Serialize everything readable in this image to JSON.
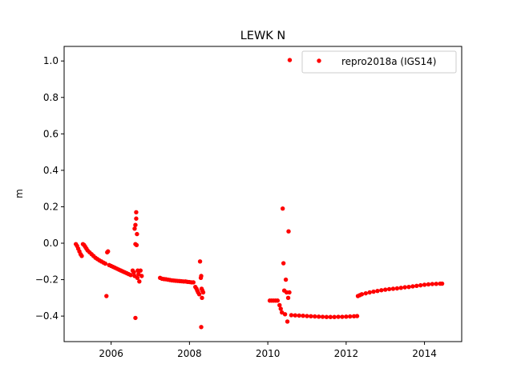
{
  "chart_data": {
    "type": "scatter",
    "title": "LEWK N",
    "xlabel": "",
    "ylabel": "m",
    "xlim": [
      2004.8,
      2014.95
    ],
    "ylim": [
      -0.54,
      1.08
    ],
    "xticks": [
      2006,
      2008,
      2010,
      2012,
      2014
    ],
    "yticks": [
      -0.4,
      -0.2,
      0.0,
      0.2,
      0.4,
      0.6,
      0.8,
      1.0
    ],
    "xtick_labels": [
      "2006",
      "2008",
      "2010",
      "2012",
      "2014"
    ],
    "ytick_labels": [
      "−0.4",
      "−0.2",
      "0.0",
      "0.2",
      "0.4",
      "0.6",
      "0.8",
      "1.0"
    ],
    "grid": false,
    "legend_position": "top-right",
    "series": [
      {
        "name": "repro2018a (IGS14)",
        "color": "#ff0000",
        "marker": "circle",
        "points": [
          [
            2005.1,
            -0.005
          ],
          [
            2005.13,
            -0.015
          ],
          [
            2005.16,
            -0.03
          ],
          [
            2005.19,
            -0.045
          ],
          [
            2005.22,
            -0.06
          ],
          [
            2005.25,
            -0.07
          ],
          [
            2005.28,
            -0.005
          ],
          [
            2005.31,
            -0.01
          ],
          [
            2005.34,
            -0.02
          ],
          [
            2005.37,
            -0.03
          ],
          [
            2005.4,
            -0.04
          ],
          [
            2005.45,
            -0.05
          ],
          [
            2005.5,
            -0.06
          ],
          [
            2005.55,
            -0.07
          ],
          [
            2005.6,
            -0.08
          ],
          [
            2005.65,
            -0.087
          ],
          [
            2005.7,
            -0.094
          ],
          [
            2005.75,
            -0.1
          ],
          [
            2005.8,
            -0.106
          ],
          [
            2005.85,
            -0.112
          ],
          [
            2005.9,
            -0.05
          ],
          [
            2005.92,
            -0.045
          ],
          [
            2005.88,
            -0.29
          ],
          [
            2005.95,
            -0.12
          ],
          [
            2006.0,
            -0.125
          ],
          [
            2006.05,
            -0.13
          ],
          [
            2006.1,
            -0.135
          ],
          [
            2006.15,
            -0.14
          ],
          [
            2006.2,
            -0.145
          ],
          [
            2006.25,
            -0.15
          ],
          [
            2006.3,
            -0.155
          ],
          [
            2006.35,
            -0.16
          ],
          [
            2006.4,
            -0.165
          ],
          [
            2006.45,
            -0.17
          ],
          [
            2006.5,
            -0.175
          ],
          [
            2006.55,
            -0.15
          ],
          [
            2006.58,
            -0.16
          ],
          [
            2006.6,
            -0.18
          ],
          [
            2006.6,
            0.08
          ],
          [
            2006.62,
            -0.005
          ],
          [
            2006.62,
            0.1
          ],
          [
            2006.64,
            0.135
          ],
          [
            2006.64,
            0.17
          ],
          [
            2006.65,
            -0.01
          ],
          [
            2006.66,
            0.05
          ],
          [
            2006.67,
            -0.19
          ],
          [
            2006.68,
            -0.15
          ],
          [
            2006.7,
            -0.17
          ],
          [
            2006.72,
            -0.21
          ],
          [
            2006.75,
            -0.15
          ],
          [
            2006.78,
            -0.18
          ],
          [
            2006.62,
            -0.41
          ],
          [
            2007.25,
            -0.19
          ],
          [
            2007.3,
            -0.195
          ],
          [
            2007.35,
            -0.197
          ],
          [
            2007.4,
            -0.198
          ],
          [
            2007.45,
            -0.2
          ],
          [
            2007.5,
            -0.202
          ],
          [
            2007.55,
            -0.204
          ],
          [
            2007.6,
            -0.205
          ],
          [
            2007.65,
            -0.206
          ],
          [
            2007.7,
            -0.207
          ],
          [
            2007.75,
            -0.208
          ],
          [
            2007.8,
            -0.209
          ],
          [
            2007.85,
            -0.21
          ],
          [
            2007.9,
            -0.21
          ],
          [
            2007.95,
            -0.212
          ],
          [
            2008.0,
            -0.213
          ],
          [
            2008.05,
            -0.215
          ],
          [
            2008.1,
            -0.215
          ],
          [
            2008.15,
            -0.24
          ],
          [
            2008.18,
            -0.25
          ],
          [
            2008.2,
            -0.26
          ],
          [
            2008.22,
            -0.27
          ],
          [
            2008.25,
            -0.28
          ],
          [
            2008.27,
            -0.1
          ],
          [
            2008.29,
            -0.19
          ],
          [
            2008.3,
            -0.18
          ],
          [
            2008.31,
            -0.25
          ],
          [
            2008.32,
            -0.3
          ],
          [
            2008.33,
            -0.26
          ],
          [
            2008.35,
            -0.27
          ],
          [
            2008.3,
            -0.46
          ],
          [
            2010.05,
            -0.315
          ],
          [
            2010.1,
            -0.315
          ],
          [
            2010.15,
            -0.315
          ],
          [
            2010.2,
            -0.315
          ],
          [
            2010.25,
            -0.315
          ],
          [
            2010.3,
            -0.34
          ],
          [
            2010.33,
            -0.36
          ],
          [
            2010.36,
            -0.38
          ],
          [
            2010.38,
            0.19
          ],
          [
            2010.4,
            -0.11
          ],
          [
            2010.42,
            -0.26
          ],
          [
            2010.44,
            -0.39
          ],
          [
            2010.46,
            -0.2
          ],
          [
            2010.48,
            -0.27
          ],
          [
            2010.5,
            -0.43
          ],
          [
            2010.52,
            -0.3
          ],
          [
            2010.53,
            0.065
          ],
          [
            2010.55,
            -0.27
          ],
          [
            2010.56,
            1.005
          ],
          [
            2010.6,
            -0.395
          ],
          [
            2010.7,
            -0.396
          ],
          [
            2010.8,
            -0.397
          ],
          [
            2010.9,
            -0.398
          ],
          [
            2011.0,
            -0.4
          ],
          [
            2011.1,
            -0.401
          ],
          [
            2011.2,
            -0.402
          ],
          [
            2011.3,
            -0.403
          ],
          [
            2011.4,
            -0.404
          ],
          [
            2011.5,
            -0.405
          ],
          [
            2011.6,
            -0.405
          ],
          [
            2011.7,
            -0.405
          ],
          [
            2011.8,
            -0.404
          ],
          [
            2011.9,
            -0.404
          ],
          [
            2012.0,
            -0.403
          ],
          [
            2012.1,
            -0.402
          ],
          [
            2012.2,
            -0.401
          ],
          [
            2012.28,
            -0.4
          ],
          [
            2012.3,
            -0.29
          ],
          [
            2012.35,
            -0.285
          ],
          [
            2012.4,
            -0.28
          ],
          [
            2012.5,
            -0.275
          ],
          [
            2012.6,
            -0.27
          ],
          [
            2012.7,
            -0.266
          ],
          [
            2012.8,
            -0.262
          ],
          [
            2012.9,
            -0.258
          ],
          [
            2013.0,
            -0.255
          ],
          [
            2013.1,
            -0.252
          ],
          [
            2013.2,
            -0.25
          ],
          [
            2013.3,
            -0.248
          ],
          [
            2013.4,
            -0.245
          ],
          [
            2013.5,
            -0.242
          ],
          [
            2013.6,
            -0.24
          ],
          [
            2013.7,
            -0.237
          ],
          [
            2013.8,
            -0.234
          ],
          [
            2013.9,
            -0.231
          ],
          [
            2014.0,
            -0.228
          ],
          [
            2014.1,
            -0.226
          ],
          [
            2014.2,
            -0.224
          ],
          [
            2014.3,
            -0.223
          ],
          [
            2014.4,
            -0.222
          ],
          [
            2014.45,
            -0.222
          ]
        ]
      }
    ]
  }
}
